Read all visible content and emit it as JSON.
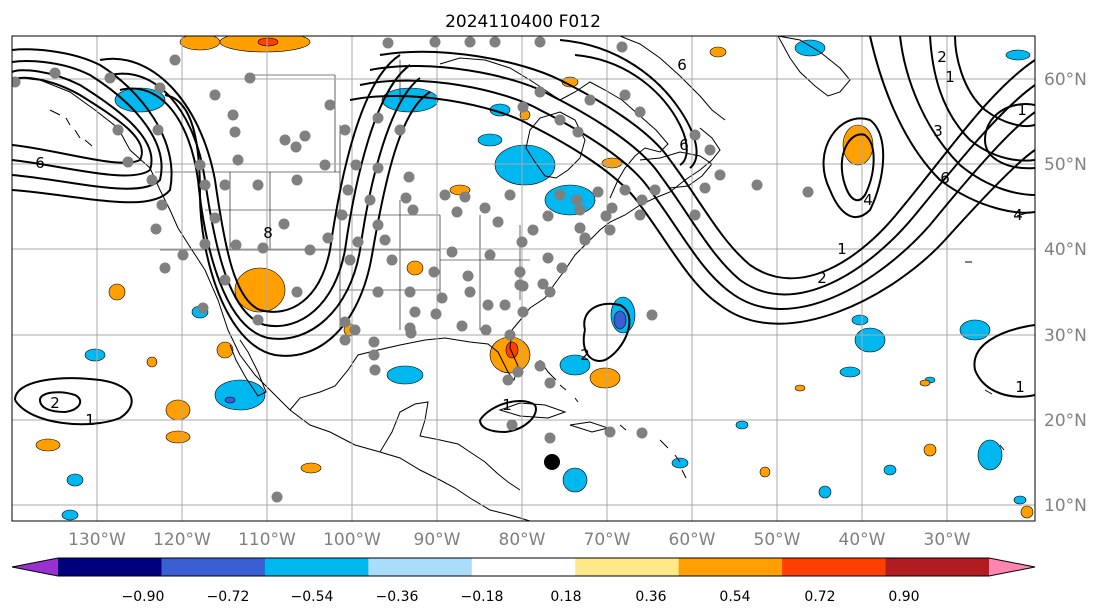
{
  "title": "2024110400 F012",
  "map": {
    "projection": "PlateCarree",
    "lon_range": [
      -140,
      -19
    ],
    "lat_range": [
      8,
      65
    ],
    "grid": true,
    "lon_labels": [
      "130°W",
      "120°W",
      "110°W",
      "100°W",
      "90°W",
      "80°W",
      "70°W",
      "60°W",
      "50°W",
      "40°W",
      "30°W"
    ],
    "lat_labels": [
      "60°N",
      "50°N",
      "40°N",
      "30°N",
      "20°N",
      "10°N"
    ],
    "station_marker_color": "#808080",
    "highlight_marker_color": "#000000"
  },
  "colorbar": {
    "tick_labels": [
      "−0.90",
      "−0.72",
      "−0.54",
      "−0.36",
      "−0.18",
      "0.18",
      "0.36",
      "0.54",
      "0.72",
      "0.90"
    ],
    "colors": [
      "#9b30d0",
      "#00007f",
      "#3a5fd4",
      "#00b8f0",
      "#aaddfa",
      "#ffffff",
      "#fde88a",
      "#ff9f00",
      "#ff3f00",
      "#b01c20",
      "#ff85b0"
    ],
    "extend": "both"
  },
  "contour_labels": [
    "6",
    "2",
    "1",
    "8",
    "6",
    "6",
    "2",
    "1",
    "1",
    "3",
    "6",
    "4",
    "4",
    "2",
    "1",
    "2",
    "1",
    "1"
  ]
}
